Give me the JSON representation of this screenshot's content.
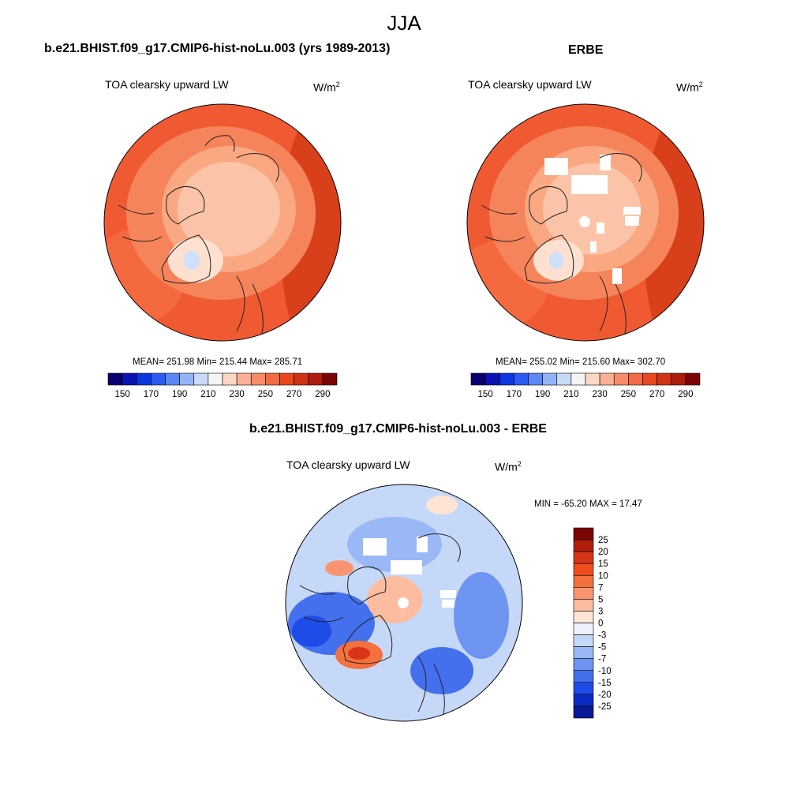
{
  "figure": {
    "title": "JJA",
    "variable": "TOA clearsky upward LW",
    "units_base": "W/m",
    "units_exp": "2"
  },
  "panels": [
    {
      "id": "model",
      "title": "b.e21.BHIST.f09_g17.CMIP6-hist-noLu.003 (yrs 1989-2013)",
      "stats": "MEAN= 251.98  Min= 215.44  Max= 285.71"
    },
    {
      "id": "obs",
      "title": "ERBE",
      "stats": "MEAN= 255.02  Min= 215.60  Max= 302.70"
    },
    {
      "id": "diff",
      "title": "b.e21.BHIST.f09_g17.CMIP6-hist-noLu.003 - ERBE",
      "stats": "MIN = -65.20 MAX =  17.47"
    }
  ],
  "colorbars": {
    "absolute": {
      "labels": [
        "150",
        "170",
        "190",
        "210",
        "230",
        "250",
        "270",
        "290"
      ],
      "colors": [
        "#08006e",
        "#0a14b4",
        "#0b36e0",
        "#2a5cf4",
        "#5a86f6",
        "#94b4f8",
        "#c8daf8",
        "#f4f4f4",
        "#fbd8c4",
        "#f9b094",
        "#f68c68",
        "#f26a46",
        "#e8481e",
        "#d03214",
        "#b01c0c",
        "#7c0404"
      ]
    },
    "difference": {
      "labels": [
        "25",
        "20",
        "15",
        "10",
        "7",
        "5",
        "3",
        "0",
        "-3",
        "-5",
        "-7",
        "-10",
        "-15",
        "-20",
        "-25"
      ],
      "colors": [
        "#7c0404",
        "#b01c0c",
        "#d83418",
        "#f04c1c",
        "#f4703c",
        "#f89470",
        "#fbbca0",
        "#fde4d4",
        "#eef0fb",
        "#c6d8f8",
        "#9ab8f6",
        "#6e94f2",
        "#4470ee",
        "#1e4ce8",
        "#0a2cc4",
        "#081896"
      ]
    }
  }
}
